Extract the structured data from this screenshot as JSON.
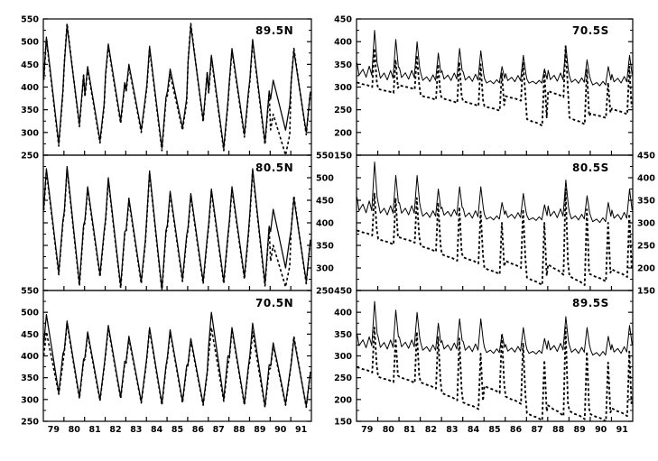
{
  "chart_data": {
    "type": "line",
    "title": "",
    "description_colors": {
      "line_color": "#000000",
      "background": "#ffffff"
    },
    "x_axis": {
      "range": [
        79,
        92
      ],
      "tick_years": [
        "79",
        "80",
        "81",
        "82",
        "83",
        "84",
        "85",
        "86",
        "87",
        "88",
        "89",
        "90",
        "91"
      ],
      "ticks_at_year_boundaries": true
    },
    "y_axis": {
      "left_column": {
        "ylim": [
          250,
          550
        ],
        "major_ticks": [
          250,
          300,
          350,
          400,
          450,
          500,
          550
        ],
        "minor_step": 25
      },
      "right_column": {
        "ylim": [
          150,
          450
        ],
        "major_ticks": [
          150,
          200,
          250,
          300,
          350,
          400,
          450
        ],
        "minor_step": 25
      }
    },
    "legend": {
      "shown": false
    },
    "grid": false,
    "seasonal_profiles": {
      "nh": [
        [
          0.02,
          0.62
        ],
        [
          0.15,
          1.0
        ],
        [
          0.45,
          0.5
        ],
        [
          0.75,
          0.0
        ],
        [
          0.95,
          0.5
        ]
      ],
      "sh_solid": [
        [
          0.02,
          0.35
        ],
        [
          0.12,
          0.1
        ],
        [
          0.3,
          0.22
        ],
        [
          0.45,
          0.06
        ],
        [
          0.6,
          0.28
        ],
        [
          0.72,
          0.1
        ],
        [
          0.85,
          1.0
        ],
        [
          0.97,
          0.35
        ]
      ],
      "sh_dashed": [
        [
          0.02,
          0.12
        ],
        [
          0.25,
          0.08
        ],
        [
          0.5,
          0.05
        ],
        [
          0.74,
          0.0
        ],
        [
          0.84,
          1.0
        ],
        [
          0.95,
          0.15
        ]
      ]
    },
    "panels": [
      {
        "label": "89.5N",
        "col": 0,
        "row": 0,
        "ylim": [
          250,
          550
        ],
        "ylabel_side": "left",
        "series": [
          {
            "name": "solid-line",
            "line": "solid",
            "thickness": 1.25,
            "profile": "nh",
            "annual_peaks": [
              510,
              535,
              445,
              495,
              450,
              490,
              440,
              535,
              470,
              485,
              505,
              415,
              480
            ],
            "annual_troughs": [
              275,
              318,
              282,
              325,
              305,
              265,
              310,
              328,
              265,
              295,
              278,
              305,
              300
            ]
          },
          {
            "name": "dashed-line",
            "line": "dashed",
            "thickness": 1.6,
            "profile": "nh",
            "annual_peaks": [
              505,
              540,
              440,
              490,
              445,
              485,
              428,
              540,
              465,
              480,
              500,
              340,
              485
            ],
            "annual_troughs": [
              270,
              313,
              277,
              320,
              300,
              260,
              305,
              323,
              260,
              290,
              273,
              250,
              295
            ]
          }
        ]
      },
      {
        "label": "70.5S",
        "col": 1,
        "row": 0,
        "ylim": [
          150,
          450
        ],
        "ylabel_side": "left",
        "series": [
          {
            "name": "solid-line",
            "line": "solid",
            "thickness": 1.0,
            "profile": "sh_solid",
            "annual_peaks": [
              425,
              405,
              400,
              375,
              385,
              380,
              345,
              370,
              340,
              390,
              360,
              345,
              370
            ],
            "annual_troughs": [
              315,
              310,
              312,
              308,
              310,
              308,
              305,
              308,
              305,
              308,
              305,
              300,
              305
            ]
          },
          {
            "name": "dashed-line",
            "line": "dashed",
            "thickness": 1.85,
            "profile": "sh_dashed",
            "annual_peaks": [
              385,
              360,
              370,
              350,
              355,
              350,
              330,
              355,
              335,
              390,
              340,
              310,
              345
            ],
            "annual_troughs": [
              300,
              287,
              295,
              272,
              265,
              258,
              248,
              270,
              215,
              278,
              218,
              232,
              240
            ]
          }
        ]
      },
      {
        "label": "80.5N",
        "col": 0,
        "row": 1,
        "ylim": [
          250,
          550
        ],
        "ylabel_side": "right",
        "series": [
          {
            "name": "solid-line",
            "line": "solid",
            "thickness": 1.25,
            "profile": "nh",
            "annual_peaks": [
              520,
              525,
              480,
              500,
              455,
              515,
              470,
              465,
              475,
              480,
              520,
              430,
              455
            ],
            "annual_troughs": [
              290,
              265,
              285,
              260,
              270,
              252,
              275,
              270,
              270,
              280,
              265,
              300,
              270
            ]
          },
          {
            "name": "dashed-line",
            "line": "dashed",
            "thickness": 1.6,
            "profile": "nh",
            "annual_peaks": [
              515,
              520,
              475,
              495,
              450,
              510,
              465,
              460,
              470,
              475,
              515,
              350,
              460
            ],
            "annual_troughs": [
              285,
              260,
              280,
              255,
              265,
              248,
              270,
              265,
              265,
              275,
              260,
              258,
              265
            ]
          }
        ]
      },
      {
        "label": "80.5S",
        "col": 1,
        "row": 1,
        "ylim": [
          150,
          450
        ],
        "ylabel_side": "right",
        "series": [
          {
            "name": "solid-line",
            "line": "solid",
            "thickness": 1.0,
            "profile": "sh_solid",
            "annual_peaks": [
              435,
              405,
              405,
              375,
              380,
              380,
              345,
              365,
              340,
              395,
              360,
              345,
              375
            ],
            "annual_troughs": [
              315,
              312,
              312,
              308,
              310,
              306,
              304,
              306,
              303,
              306,
              303,
              298,
              303
            ]
          },
          {
            "name": "dashed-line",
            "line": "dashed",
            "thickness": 1.85,
            "profile": "sh_dashed",
            "annual_peaks": [
              365,
              355,
              355,
              345,
              335,
              325,
              300,
              330,
              300,
              375,
              330,
              300,
              320
            ],
            "annual_troughs": [
              272,
              252,
              256,
              236,
              216,
              210,
              186,
              200,
              162,
              185,
              162,
              170,
              180
            ]
          }
        ]
      },
      {
        "label": "70.5N",
        "col": 0,
        "row": 2,
        "ylim": [
          250,
          550
        ],
        "ylabel_side": "left",
        "series": [
          {
            "name": "solid-line",
            "line": "solid",
            "thickness": 1.25,
            "profile": "nh",
            "annual_peaks": [
              495,
              480,
              455,
              470,
              445,
              465,
              460,
              440,
              500,
              465,
              475,
              430,
              440
            ],
            "annual_troughs": [
              315,
              305,
              300,
              305,
              295,
              290,
              295,
              290,
              300,
              290,
              285,
              290,
              285
            ]
          },
          {
            "name": "dashed-line",
            "line": "dashed",
            "thickness": 1.6,
            "profile": "nh",
            "annual_peaks": [
              455,
              475,
              450,
              465,
              440,
              460,
              455,
              435,
              465,
              460,
              455,
              425,
              445
            ],
            "annual_troughs": [
              312,
              302,
              297,
              302,
              292,
              287,
              292,
              287,
              296,
              287,
              282,
              287,
              282
            ]
          }
        ]
      },
      {
        "label": "89.5S",
        "col": 1,
        "row": 2,
        "ylim": [
          150,
          450
        ],
        "ylabel_side": "left",
        "series": [
          {
            "name": "solid-line",
            "line": "solid",
            "thickness": 1.0,
            "profile": "sh_solid",
            "annual_peaks": [
              425,
              405,
              400,
              375,
              385,
              385,
              350,
              365,
              340,
              390,
              365,
              345,
              370
            ],
            "annual_troughs": [
              312,
              310,
              312,
              306,
              308,
              305,
              303,
              305,
              302,
              305,
              302,
              297,
              302
            ]
          },
          {
            "name": "dashed-line",
            "line": "dashed",
            "thickness": 1.85,
            "profile": "sh_dashed",
            "annual_peaks": [
              365,
              340,
              355,
              345,
              340,
              305,
              350,
              330,
              290,
              365,
              310,
              285,
              310
            ],
            "annual_troughs": [
              262,
              240,
              238,
              225,
              198,
              178,
              215,
              190,
              152,
              162,
              155,
              150,
              162
            ]
          }
        ]
      }
    ]
  }
}
